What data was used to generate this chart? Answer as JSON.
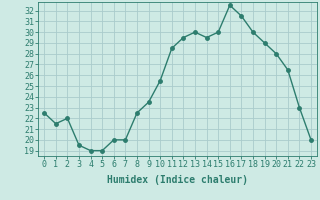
{
  "x": [
    0,
    1,
    2,
    3,
    4,
    5,
    6,
    7,
    8,
    9,
    10,
    11,
    12,
    13,
    14,
    15,
    16,
    17,
    18,
    19,
    20,
    21,
    22,
    23
  ],
  "y": [
    22.5,
    21.5,
    22.0,
    19.5,
    19.0,
    19.0,
    20.0,
    20.0,
    22.5,
    23.5,
    25.5,
    28.5,
    29.5,
    30.0,
    29.5,
    30.0,
    32.5,
    31.5,
    30.0,
    29.0,
    28.0,
    26.5,
    23.0,
    20.0
  ],
  "line_color": "#2d7d6e",
  "marker": "o",
  "marker_size": 2.5,
  "bg_color": "#ceeae4",
  "grid_color": "#aacccc",
  "xlabel": "Humidex (Indice chaleur)",
  "ylabel_ticks": [
    19,
    20,
    21,
    22,
    23,
    24,
    25,
    26,
    27,
    28,
    29,
    30,
    31,
    32
  ],
  "ylim": [
    18.5,
    32.8
  ],
  "xlim": [
    -0.5,
    23.5
  ],
  "tick_color": "#2d7d6e",
  "label_fontsize": 7,
  "tick_fontsize": 6
}
